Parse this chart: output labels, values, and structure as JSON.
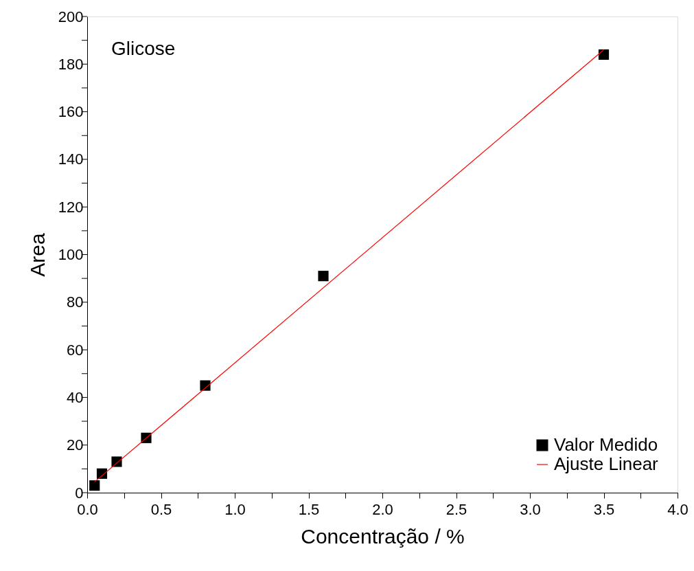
{
  "chart_data": {
    "type": "scatter",
    "xlabel": "Concentração / %",
    "ylabel": "Area",
    "annotations": [
      "Glicose"
    ],
    "series": [
      {
        "name": "Valor Medido",
        "type": "scatter",
        "marker": "square",
        "color": "#000000",
        "x": [
          0.05,
          0.1,
          0.2,
          0.4,
          0.8,
          1.6,
          3.5
        ],
        "values": [
          3,
          8,
          13,
          23,
          45,
          91,
          184
        ]
      },
      {
        "name": "Ajuste Linear",
        "type": "line",
        "marker": "none",
        "line_style": "solid",
        "color": "#ff0000",
        "x": [
          0.05,
          3.5
        ],
        "values": [
          4.5,
          186
        ]
      }
    ],
    "xlim": [
      0,
      4
    ],
    "ylim": [
      0,
      200
    ],
    "xticks": [
      {
        "value": 0,
        "label": "0.0"
      },
      {
        "value": 0.25,
        "label": null
      },
      {
        "value": 0.5,
        "label": "0.5"
      },
      {
        "value": 0.75,
        "label": null
      },
      {
        "value": 1,
        "label": "1.0"
      },
      {
        "value": 1.25,
        "label": null
      },
      {
        "value": 1.5,
        "label": "1.5"
      },
      {
        "value": 1.75,
        "label": null
      },
      {
        "value": 2,
        "label": "2.0"
      },
      {
        "value": 2.25,
        "label": null
      },
      {
        "value": 2.5,
        "label": "2.5"
      },
      {
        "value": 2.75,
        "label": null
      },
      {
        "value": 3,
        "label": "3.0"
      },
      {
        "value": 3.25,
        "label": null
      },
      {
        "value": 3.5,
        "label": "3.5"
      },
      {
        "value": 3.75,
        "label": null
      },
      {
        "value": 4,
        "label": "4.0"
      }
    ],
    "yticks": [
      0,
      {
        "value": 10,
        "label": null
      },
      20,
      {
        "value": 30,
        "label": null
      },
      40,
      {
        "value": 50,
        "label": null
      },
      60,
      {
        "value": 70,
        "label": null
      },
      80,
      {
        "value": 90,
        "label": null
      },
      100,
      {
        "value": 110,
        "label": null
      },
      120,
      {
        "value": 130,
        "label": null
      },
      140,
      {
        "value": 150,
        "label": null
      },
      160,
      {
        "value": 170,
        "label": null
      },
      180,
      {
        "value": 190,
        "label": null
      },
      200
    ],
    "grid": false,
    "legend": "bottom right"
  }
}
